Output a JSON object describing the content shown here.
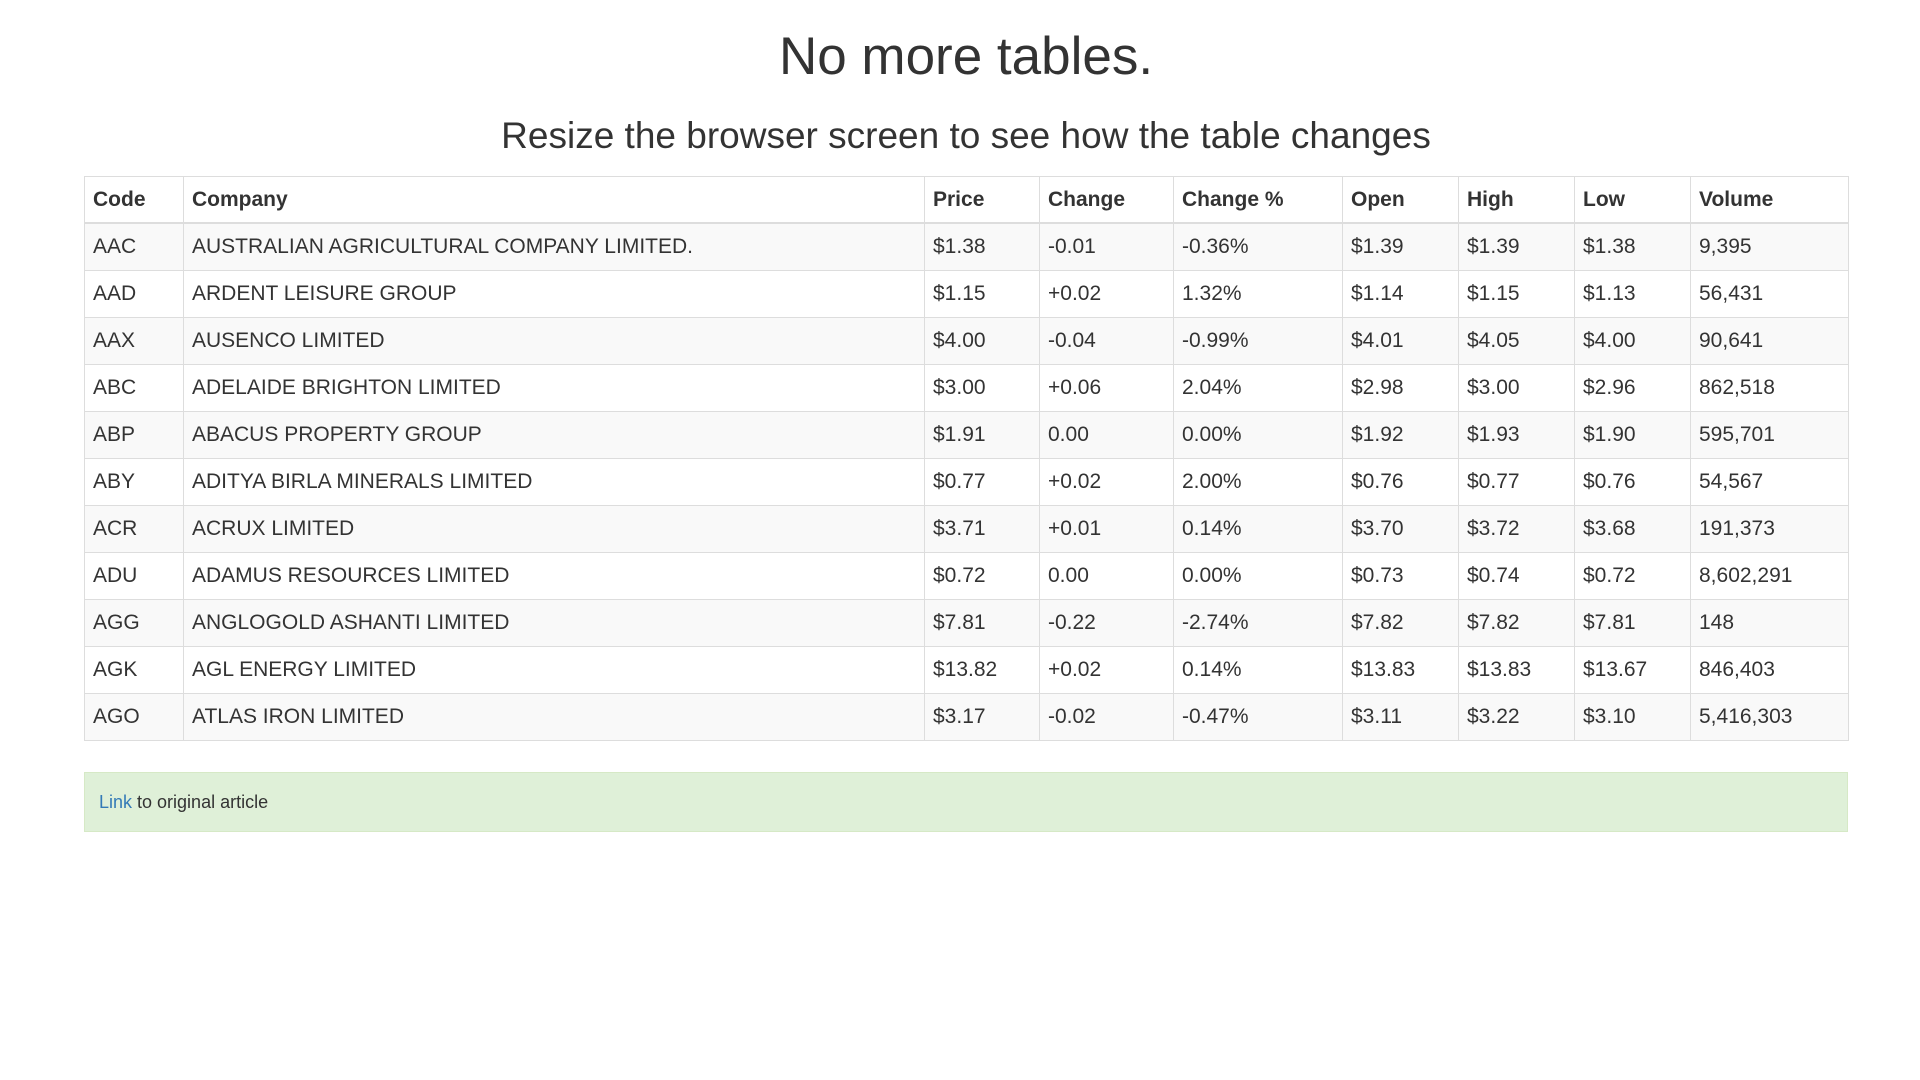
{
  "page": {
    "title": "No more tables.",
    "subtitle": "Resize the browser screen to see how the table changes"
  },
  "table": {
    "headers": [
      "Code",
      "Company",
      "Price",
      "Change",
      "Change %",
      "Open",
      "High",
      "Low",
      "Volume"
    ],
    "rows": [
      [
        "AAC",
        "AUSTRALIAN AGRICULTURAL COMPANY LIMITED.",
        "$1.38",
        "-0.01",
        "-0.36%",
        "$1.39",
        "$1.39",
        "$1.38",
        "9,395"
      ],
      [
        "AAD",
        "ARDENT LEISURE GROUP",
        "$1.15",
        "+0.02",
        "1.32%",
        "$1.14",
        "$1.15",
        "$1.13",
        "56,431"
      ],
      [
        "AAX",
        "AUSENCO LIMITED",
        "$4.00",
        "-0.04",
        "-0.99%",
        "$4.01",
        "$4.05",
        "$4.00",
        "90,641"
      ],
      [
        "ABC",
        "ADELAIDE BRIGHTON LIMITED",
        "$3.00",
        "+0.06",
        "2.04%",
        "$2.98",
        "$3.00",
        "$2.96",
        "862,518"
      ],
      [
        "ABP",
        "ABACUS PROPERTY GROUP",
        "$1.91",
        "0.00",
        "0.00%",
        "$1.92",
        "$1.93",
        "$1.90",
        "595,701"
      ],
      [
        "ABY",
        "ADITYA BIRLA MINERALS LIMITED",
        "$0.77",
        "+0.02",
        "2.00%",
        "$0.76",
        "$0.77",
        "$0.76",
        "54,567"
      ],
      [
        "ACR",
        "ACRUX LIMITED",
        "$3.71",
        "+0.01",
        "0.14%",
        "$3.70",
        "$3.72",
        "$3.68",
        "191,373"
      ],
      [
        "ADU",
        "ADAMUS RESOURCES LIMITED",
        "$0.72",
        "0.00",
        "0.00%",
        "$0.73",
        "$0.74",
        "$0.72",
        "8,602,291"
      ],
      [
        "AGG",
        "ANGLOGOLD ASHANTI LIMITED",
        "$7.81",
        "-0.22",
        "-2.74%",
        "$7.82",
        "$7.82",
        "$7.81",
        "148"
      ],
      [
        "AGK",
        "AGL ENERGY LIMITED",
        "$13.82",
        "+0.02",
        "0.14%",
        "$13.83",
        "$13.83",
        "$13.67",
        "846,403"
      ],
      [
        "AGO",
        "ATLAS IRON LIMITED",
        "$3.17",
        "-0.02",
        "-0.47%",
        "$3.11",
        "$3.22",
        "$3.10",
        "5,416,303"
      ]
    ]
  },
  "footer": {
    "link_label": "Link",
    "text": "to original article"
  }
}
